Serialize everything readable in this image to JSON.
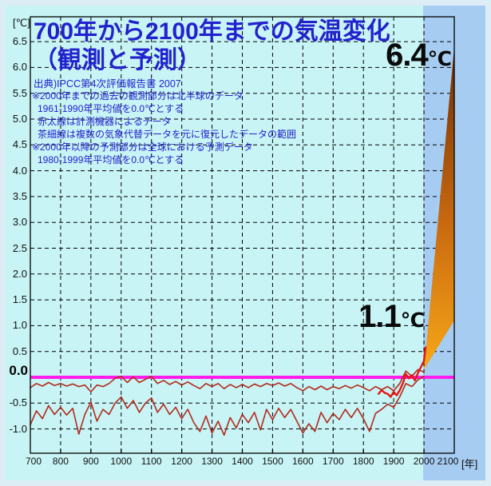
{
  "header": {
    "title_line1": "700年から2100年までの気温変化",
    "title_line2": "（観測と予測）"
  },
  "notes": {
    "source": "出典)IPCC第4次評価報告書 2007",
    "lines": [
      "※2000年までの過去の観測部分は北半球のデータ",
      "1961-1990年平均値を0.0℃とする",
      "赤太線は計測機器によるデータ",
      "茶細線は複数の気象代替データを元に復元したデータの範囲",
      "※2000年以降の予測部分は全球における予測データ",
      "1980-1999年平均値を0.0℃とする"
    ]
  },
  "annotations": {
    "max": {
      "value": "6.4",
      "unit": "℃"
    },
    "min": {
      "value": "1.1",
      "unit": "℃"
    },
    "zero_label": "0.0",
    "y_unit": "[℃]",
    "x_unit": "[年]"
  },
  "colors": {
    "background": "#c8f4f6",
    "border": "#dcedf6",
    "prediction_band": "#a6ccf2",
    "title_blue": "#2222cd",
    "grid": "#000000",
    "proxy_line": "#b22a1a",
    "instrument_line": "#e51511",
    "zero_line": "#ff1ced",
    "wedge_light": "#f7a818",
    "wedge_mid": "#c96a10",
    "wedge_dark": "#6e2e07"
  },
  "chart_data": {
    "type": "line",
    "title": "700年から2100年までの気温変化（観測と予測）",
    "xlabel": "年",
    "ylabel": "℃",
    "x_range": [
      700,
      2100
    ],
    "y_plot_range": [
      -1.47,
      6.98
    ],
    "grid": "dashed",
    "x_axis": {
      "tick_years": [
        700,
        800,
        900,
        1000,
        1100,
        1200,
        1300,
        1400,
        1500,
        1600,
        1700,
        1800,
        1900,
        2000,
        2100
      ],
      "tick_labels": [
        "700",
        "800",
        "900",
        "1000",
        "1100",
        "1200",
        "1300",
        "1400",
        "1500",
        "1600",
        "1700",
        "1800",
        "1900",
        "2000",
        "2100"
      ],
      "gridline_years": [
        800,
        900,
        1000,
        1100,
        1200,
        1300,
        1400,
        1500,
        1600,
        1700,
        1800,
        1900,
        2000
      ]
    },
    "y_axis": {
      "tick_values": [
        6.5,
        6.0,
        5.5,
        5.0,
        4.5,
        4.0,
        3.5,
        3.0,
        2.5,
        2.0,
        1.5,
        1.0,
        0.5,
        -0.5,
        -1.0
      ],
      "tick_labels": [
        "6.5",
        "6.0",
        "5.5",
        "5.0",
        "4.5",
        "4.0",
        "3.5",
        "3.0",
        "2.5",
        "2.0",
        "1.5",
        "1.0",
        "0.5",
        "-0.5",
        "-1.0"
      ],
      "zero_value": 0.0
    },
    "prediction_band_years": [
      2000,
      2100
    ],
    "zero_line_value": 0.0,
    "series": [
      {
        "name": "茶細線・復元データ範囲上限",
        "role": "proxy_upper",
        "years": [
          700,
          720,
          740,
          760,
          780,
          800,
          820,
          840,
          860,
          880,
          900,
          920,
          940,
          960,
          980,
          1000,
          1020,
          1040,
          1060,
          1080,
          1100,
          1120,
          1140,
          1160,
          1180,
          1200,
          1220,
          1240,
          1260,
          1280,
          1300,
          1320,
          1340,
          1360,
          1380,
          1400,
          1420,
          1440,
          1460,
          1480,
          1500,
          1520,
          1540,
          1560,
          1580,
          1600,
          1620,
          1640,
          1660,
          1680,
          1700,
          1720,
          1740,
          1760,
          1780,
          1800,
          1820,
          1840,
          1860,
          1880,
          1900,
          1920,
          1940,
          1960,
          1980,
          2000
        ],
        "values": [
          -0.2,
          -0.12,
          -0.17,
          -0.1,
          -0.16,
          -0.12,
          -0.17,
          -0.13,
          -0.18,
          -0.15,
          -0.28,
          -0.15,
          -0.18,
          -0.12,
          -0.02,
          0.02,
          -0.1,
          0.01,
          -0.1,
          -0.04,
          0.02,
          -0.12,
          -0.06,
          -0.14,
          -0.08,
          -0.15,
          -0.09,
          -0.16,
          -0.22,
          -0.12,
          -0.18,
          -0.12,
          -0.22,
          -0.14,
          -0.2,
          -0.14,
          -0.2,
          -0.13,
          -0.18,
          -0.12,
          -0.16,
          -0.11,
          -0.17,
          -0.12,
          -0.2,
          -0.26,
          -0.18,
          -0.24,
          -0.17,
          -0.24,
          -0.18,
          -0.22,
          -0.16,
          -0.21,
          -0.15,
          -0.2,
          -0.26,
          -0.18,
          -0.24,
          -0.18,
          -0.26,
          -0.12,
          0.12,
          0.02,
          0.15,
          0.1
        ]
      },
      {
        "name": "茶細線・復元データ範囲下限",
        "role": "proxy_lower",
        "years": [
          700,
          720,
          740,
          760,
          780,
          800,
          820,
          840,
          860,
          880,
          900,
          920,
          940,
          960,
          980,
          1000,
          1020,
          1040,
          1060,
          1080,
          1100,
          1120,
          1140,
          1160,
          1180,
          1200,
          1220,
          1240,
          1260,
          1280,
          1300,
          1320,
          1340,
          1360,
          1380,
          1400,
          1420,
          1440,
          1460,
          1480,
          1500,
          1520,
          1540,
          1560,
          1580,
          1600,
          1620,
          1640,
          1660,
          1680,
          1700,
          1720,
          1740,
          1760,
          1780,
          1800,
          1820,
          1840,
          1860,
          1880,
          1900,
          1920,
          1940,
          1960,
          1980,
          2000
        ],
        "values": [
          -0.92,
          -0.65,
          -0.8,
          -0.55,
          -0.72,
          -0.58,
          -0.73,
          -0.6,
          -1.1,
          -0.72,
          -0.48,
          -0.85,
          -0.62,
          -0.72,
          -0.5,
          -0.38,
          -0.6,
          -0.45,
          -0.68,
          -0.5,
          -0.4,
          -0.68,
          -0.52,
          -0.72,
          -0.58,
          -0.8,
          -0.62,
          -0.88,
          -1.05,
          -0.75,
          -1.08,
          -0.85,
          -1.12,
          -0.78,
          -0.98,
          -0.72,
          -0.88,
          -0.68,
          -1.02,
          -0.62,
          -0.82,
          -0.6,
          -0.78,
          -0.62,
          -0.85,
          -1.08,
          -0.9,
          -1.05,
          -0.68,
          -0.88,
          -0.7,
          -0.82,
          -0.62,
          -0.78,
          -0.6,
          -0.8,
          -1.05,
          -0.7,
          -0.62,
          -0.52,
          -0.58,
          -0.38,
          -0.12,
          -0.18,
          -0.05,
          0.02
        ]
      },
      {
        "name": "赤太線・計測機器によるデータ",
        "role": "instrument",
        "years": [
          1850,
          1860,
          1870,
          1880,
          1890,
          1900,
          1910,
          1920,
          1930,
          1940,
          1950,
          1960,
          1970,
          1980,
          1990,
          2000,
          2005
        ],
        "values": [
          -0.32,
          -0.25,
          -0.3,
          -0.32,
          -0.38,
          -0.28,
          -0.35,
          -0.25,
          -0.12,
          0.06,
          -0.02,
          0.04,
          -0.06,
          0.08,
          0.2,
          0.32,
          0.58
        ]
      }
    ],
    "prediction_wedge": {
      "year_start": 2000,
      "value_start": 0.15,
      "year_end": 2100,
      "value_min": 1.1,
      "value_max": 6.4
    }
  }
}
